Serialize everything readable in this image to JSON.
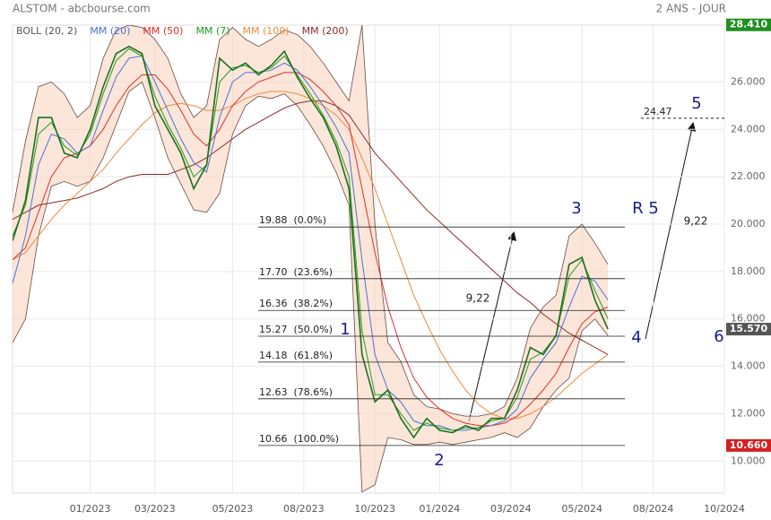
{
  "chart_data": {
    "type": "line",
    "title": "ALSTOM - abcbourse.com",
    "subtitle": "2 ANS - JOUR",
    "color": "#1f6e1f",
    "x": [
      0,
      2,
      4,
      6,
      8,
      10,
      12,
      14,
      16,
      18,
      20,
      22,
      24,
      26,
      28,
      30,
      32,
      34,
      36,
      38,
      40,
      42,
      44,
      46,
      48,
      50,
      52,
      54,
      56,
      58,
      60,
      62,
      64,
      66,
      68,
      70,
      72,
      74,
      76,
      78,
      80,
      82,
      84,
      86,
      88,
      90,
      92
    ],
    "values": [
      19.3,
      21,
      24.5,
      24.5,
      23,
      22.8,
      24,
      25.8,
      27.2,
      27.5,
      27.2,
      25,
      24,
      23,
      21.5,
      22.5,
      27,
      26.5,
      26.8,
      26.3,
      26.7,
      27.3,
      26.2,
      25.3,
      24.5,
      23.3,
      21.5,
      14.5,
      12.5,
      13,
      11.8,
      11,
      11.8,
      11.3,
      11.2,
      11.5,
      11.3,
      11.8,
      11.8,
      13,
      14.8,
      14.5,
      15.3,
      18.3,
      18.6,
      16.8,
      15.57
    ],
    "series": [
      {
        "name": "BOLL (20, 2)",
        "color": "#6b4a3e",
        "upper": [
          20.5,
          23.5,
          25.8,
          26,
          25.5,
          24.5,
          25,
          27,
          28.2,
          28.4,
          28.3,
          27.8,
          27,
          25.5,
          24.5,
          25,
          27.8,
          28.3,
          27.8,
          27.5,
          27.8,
          28.2,
          28,
          27.5,
          26.8,
          26,
          25.2,
          28.4,
          20,
          15,
          14.2,
          12.8,
          12.3,
          12.2,
          12,
          11.9,
          11.9,
          12,
          12.3,
          13.5,
          15.6,
          16.5,
          17,
          19.5,
          20,
          19.2,
          18.3
        ],
        "lower": [
          15,
          16,
          19.5,
          21.6,
          21.8,
          21.6,
          21.8,
          22.8,
          24.2,
          25.6,
          26,
          24.5,
          22.8,
          21.7,
          20.6,
          20.5,
          21.3,
          23.8,
          25,
          25.4,
          25.3,
          25.5,
          25,
          24.2,
          23.3,
          22.2,
          20.8,
          8.7,
          9,
          11,
          10.9,
          10.7,
          10.7,
          10.8,
          10.7,
          10.8,
          10.9,
          11,
          11.2,
          11,
          11.4,
          12.3,
          13,
          13.5,
          15.5,
          16,
          15.3
        ]
      },
      {
        "name": "MM (20)",
        "color": "#4a72d8",
        "values": [
          17.5,
          19.5,
          22.5,
          23.8,
          23.6,
          23,
          23.3,
          24.8,
          26.2,
          27,
          27.1,
          26,
          24.8,
          23.6,
          22.6,
          22.2,
          24.5,
          26,
          26.4,
          26.4,
          26.5,
          26.8,
          26.5,
          25.8,
          25,
          24.1,
          23,
          18.5,
          14.5,
          13,
          12.5,
          11.7,
          11.5,
          11.5,
          11.3,
          11.3,
          11.4,
          11.5,
          11.7,
          12.2,
          13.5,
          14.3,
          15,
          16.5,
          17.8,
          17.6,
          16.8
        ]
      },
      {
        "name": "MM (50)",
        "color": "#e0302a",
        "values": [
          18.5,
          19,
          20.5,
          22,
          22.8,
          23,
          23.3,
          24,
          25,
          25.8,
          26.3,
          26.3,
          25.7,
          24.8,
          23.8,
          23.3,
          24,
          25,
          25.6,
          26,
          26.2,
          26.4,
          26.4,
          26.1,
          25.6,
          25,
          24.2,
          21.5,
          18.8,
          16.5,
          14.8,
          13.5,
          12.7,
          12.2,
          11.8,
          11.6,
          11.5,
          11.5,
          11.6,
          11.9,
          12.4,
          13,
          13.7,
          14.8,
          15.8,
          16.3,
          16.5
        ]
      },
      {
        "name": "MM (7)",
        "color": "#1e9e1e",
        "values": [
          19.5,
          20.8,
          23.8,
          24.3,
          23.3,
          22.9,
          23.8,
          25.5,
          26.9,
          27.4,
          27.1,
          25.4,
          24.2,
          23.2,
          22,
          22.5,
          26,
          26.6,
          26.7,
          26.4,
          26.6,
          27.1,
          26.3,
          25.5,
          24.6,
          23.5,
          22,
          15.5,
          12.8,
          12.8,
          12,
          11.3,
          11.6,
          11.4,
          11.3,
          11.4,
          11.4,
          11.7,
          11.8,
          12.7,
          14.3,
          14.6,
          15.3,
          17.8,
          18.5,
          17.2,
          16
        ]
      },
      {
        "name": "MM (100)",
        "color": "#f08a3c",
        "values": [
          18.5,
          18.8,
          19.5,
          20.2,
          20.8,
          21.3,
          21.8,
          22.3,
          23,
          23.6,
          24.2,
          24.7,
          25,
          25.1,
          25,
          24.8,
          24.8,
          25,
          25.3,
          25.5,
          25.6,
          25.6,
          25.5,
          25.3,
          25,
          24.6,
          24,
          22.8,
          21.5,
          20,
          18.5,
          17,
          15.8,
          14.7,
          13.8,
          13,
          12.4,
          12,
          11.8,
          11.8,
          12,
          12.3,
          12.7,
          13.2,
          13.7,
          14.1,
          14.5
        ]
      },
      {
        "name": "MM (200)",
        "color": "#8b2a2a",
        "values": [
          20.2,
          20.5,
          20.8,
          20.9,
          21,
          21.1,
          21.3,
          21.5,
          21.8,
          22,
          22.1,
          22.1,
          22.1,
          22.3,
          22.5,
          22.8,
          23.2,
          23.6,
          24,
          24.3,
          24.6,
          24.9,
          25.1,
          25.2,
          25.2,
          25,
          24.6,
          23.8,
          23,
          22.4,
          21.8,
          21.2,
          20.6,
          20.1,
          19.6,
          19.1,
          18.6,
          18.1,
          17.6,
          17.1,
          16.7,
          16.2,
          15.8,
          15.4,
          15.1,
          14.8,
          14.5
        ]
      }
    ],
    "xlim": [
      0,
      110
    ],
    "xticks": [
      {
        "value": 12,
        "label": "01/2023"
      },
      {
        "value": 22,
        "label": "03/2023"
      },
      {
        "value": 34,
        "label": "05/2023"
      },
      {
        "value": 45,
        "label": "08/2023"
      },
      {
        "value": 56,
        "label": "10/2023"
      },
      {
        "value": 66,
        "label": "01/2024"
      },
      {
        "value": 77,
        "label": "03/2024"
      },
      {
        "value": 88,
        "label": "05/2024"
      },
      {
        "value": 99,
        "label": "08/2024"
      },
      {
        "value": 110,
        "label": "10/2024"
      }
    ],
    "ylim": [
      8.65,
      28.4
    ],
    "yticks": [
      {
        "value": 10,
        "label": "10.000"
      },
      {
        "value": 12,
        "label": "12.000"
      },
      {
        "value": 14,
        "label": "14.000"
      },
      {
        "value": 16,
        "label": "16.000"
      },
      {
        "value": 18,
        "label": "18.000"
      },
      {
        "value": 20,
        "label": "20.000"
      },
      {
        "value": 22,
        "label": "22.000"
      },
      {
        "value": 24,
        "label": "24.000"
      },
      {
        "value": 26,
        "label": "26.000"
      }
    ],
    "grid": true,
    "price_markers": [
      {
        "value": 28.41,
        "label": "28.410",
        "color": "#1f8f1f"
      },
      {
        "value": 15.57,
        "label": "15.570",
        "color": "#555555"
      },
      {
        "value": 10.66,
        "label": "10.660",
        "color": "#d42020"
      }
    ],
    "fibonacci": [
      {
        "value": 19.88,
        "label": "19.88  (0.0%)"
      },
      {
        "value": 17.7,
        "label": "17.70  (23.6%)"
      },
      {
        "value": 16.36,
        "label": "16.36  (38.2%)"
      },
      {
        "value": 15.27,
        "label": "15.27  (50.0%)"
      },
      {
        "value": 14.18,
        "label": "14.18  (61.8%)"
      },
      {
        "value": 12.63,
        "label": "12.63  (78.6%)"
      },
      {
        "value": 10.66,
        "label": "10.66  (100.0%)"
      }
    ],
    "target": 24.47,
    "wave_labels": [
      "1",
      "2",
      "3",
      "4",
      "5",
      "6"
    ],
    "notes": [
      "R 5",
      "9,22",
      "9,22"
    ]
  }
}
